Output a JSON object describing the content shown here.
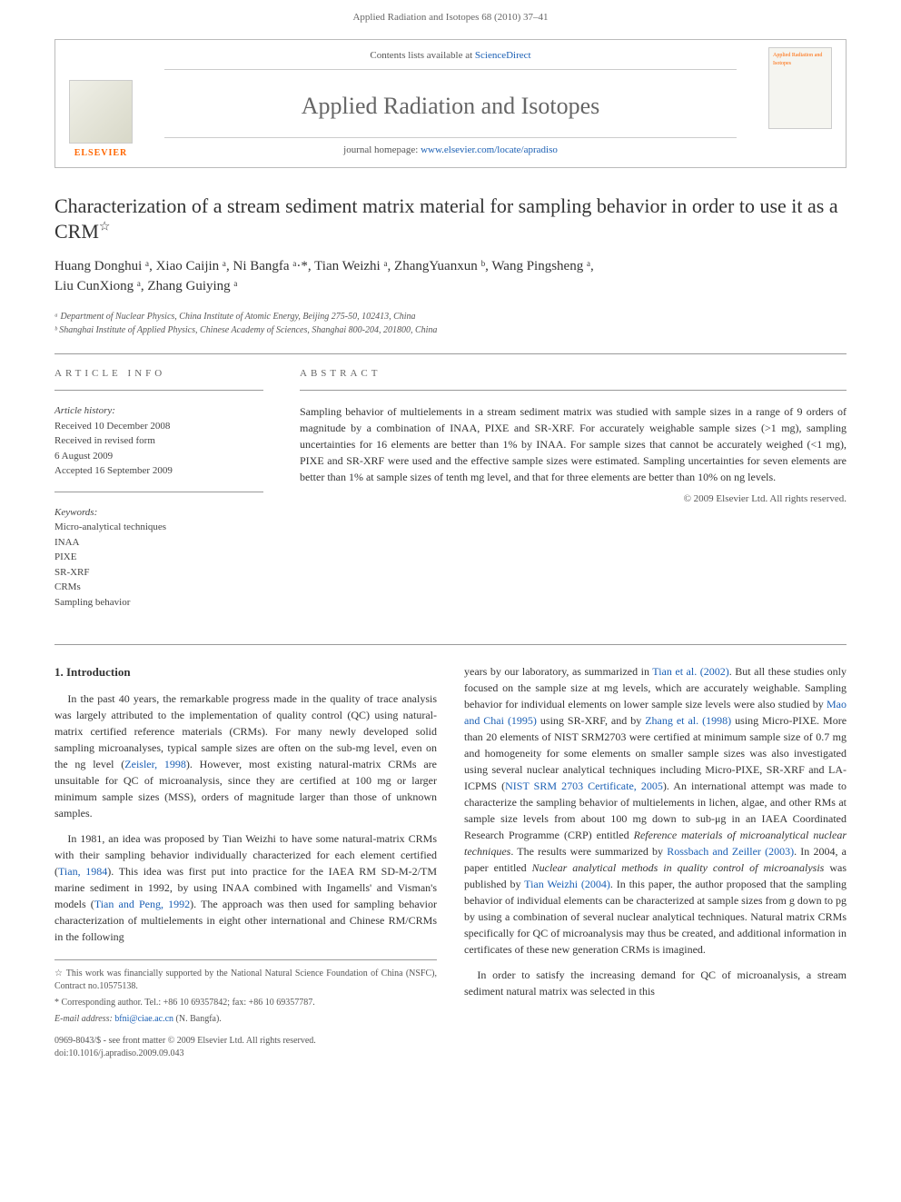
{
  "page_header": "Applied Radiation and Isotopes 68 (2010) 37–41",
  "journal_box": {
    "contents_prefix": "Contents lists available at ",
    "contents_link": "ScienceDirect",
    "journal_title": "Applied Radiation and Isotopes",
    "homepage_prefix": "journal homepage: ",
    "homepage_link": "www.elsevier.com/locate/apradiso",
    "elsevier_label": "ELSEVIER",
    "cover_text": "Applied Radiation and Isotopes"
  },
  "article": {
    "title": "Characterization of a stream sediment matrix material for sampling behavior in order to use it as a CRM",
    "star": "☆",
    "authors_line1": "Huang Donghui ᵃ, Xiao Caijin ᵃ, Ni Bangfa ᵃ·*, Tian Weizhi ᵃ, ZhangYuanxun ᵇ, Wang Pingsheng ᵃ,",
    "authors_line2": "Liu CunXiong ᵃ, Zhang Guiying ᵃ",
    "aff_a": "ᵃ Department of Nuclear Physics, China Institute of Atomic Energy, Beijing 275-50, 102413, China",
    "aff_b": "ᵇ Shanghai Institute of Applied Physics, Chinese Academy of Sciences, Shanghai 800-204, 201800, China"
  },
  "meta": {
    "article_info_label": "ARTICLE INFO",
    "history_label": "Article history:",
    "received": "Received 10 December 2008",
    "revised": "Received in revised form",
    "revised_date": "6 August 2009",
    "accepted": "Accepted 16 September 2009",
    "keywords_label": "Keywords:",
    "keywords": [
      "Micro-analytical techniques",
      "INAA",
      "PIXE",
      "SR-XRF",
      "CRMs",
      "Sampling behavior"
    ]
  },
  "abstract": {
    "label": "ABSTRACT",
    "text": "Sampling behavior of multielements in a stream sediment matrix was studied with sample sizes in a range of 9 orders of magnitude by a combination of INAA, PIXE and SR-XRF. For accurately weighable sample sizes (>1 mg), sampling uncertainties for 16 elements are better than 1% by INAA. For sample sizes that cannot be accurately weighed (<1 mg), PIXE and SR-XRF were used and the effective sample sizes were estimated. Sampling uncertainties for seven elements are better than 1% at sample sizes of tenth mg level, and that for three elements are better than 10% on ng levels.",
    "copyright": "© 2009 Elsevier Ltd. All rights reserved."
  },
  "section1": {
    "heading": "1. Introduction",
    "p1_a": "In the past 40 years, the remarkable progress made in the quality of trace analysis was largely attributed to the implementation of quality control (QC) using natural-matrix certified reference materials (CRMs). For many newly developed solid sampling microanalyses, typical sample sizes are often on the sub-mg level, even on the ng level (",
    "p1_link1": "Zeisler, 1998",
    "p1_b": "). However, most existing natural-matrix CRMs are unsuitable for QC of microanalysis, since they are certified at 100 mg or larger minimum sample sizes (MSS), orders of magnitude larger than those of unknown samples.",
    "p2_a": "In 1981, an idea was proposed by Tian Weizhi to have some natural-matrix CRMs with their sampling behavior individually characterized for each element certified (",
    "p2_link1": "Tian, 1984",
    "p2_b": "). This idea was first put into practice for the IAEA RM SD-M-2/TM marine sediment in 1992, by using INAA combined with Ingamells' and Visman's models (",
    "p2_link2": "Tian and Peng, 1992",
    "p2_c": "). The approach was then used for sampling behavior characterization of multielements in eight other international and Chinese RM/CRMs in the following",
    "col2_a": "years by our laboratory, as summarized in ",
    "col2_link1": "Tian et al. (2002)",
    "col2_b": ". But all these studies only focused on the sample size at mg levels, which are accurately weighable. Sampling behavior for individual elements on lower sample size levels were also studied by ",
    "col2_link2": "Mao and Chai (1995)",
    "col2_c": " using SR-XRF, and by ",
    "col2_link3": "Zhang et al. (1998)",
    "col2_d": " using Micro-PIXE. More than 20 elements of NIST SRM2703 were certified at minimum sample size of 0.7 mg and homogeneity for some elements on smaller sample sizes was also investigated using several nuclear analytical techniques including Micro-PIXE, SR-XRF and LA-ICPMS (",
    "col2_link4": "NIST SRM 2703 Certificate, 2005",
    "col2_e": "). An international attempt was made to characterize the sampling behavior of multielements in lichen, algae, and other RMs at sample size levels from about 100 mg down to sub-μg in an IAEA Coordinated Research Programme (CRP) entitled ",
    "col2_em1": "Reference materials of microanalytical nuclear techniques",
    "col2_f": ". The results were summarized by ",
    "col2_link5": "Rossbach and Zeiller (2003)",
    "col2_g": ". In 2004, a paper entitled ",
    "col2_em2": "Nuclear analytical methods in quality control of microanalysis",
    "col2_h": " was published by ",
    "col2_link6": "Tian Weizhi (2004)",
    "col2_i": ". In this paper, the author proposed that the sampling behavior of individual elements can be characterized at sample sizes from g down to pg by using a combination of several nuclear analytical techniques. Natural matrix CRMs specifically for QC of microanalysis may thus be created, and additional information in certificates of these new generation CRMs is imagined.",
    "col2_p2": "In order to satisfy the increasing demand for QC of microanalysis, a stream sediment natural matrix was selected in this"
  },
  "footnotes": {
    "star_note": "☆ This work was financially supported by the National Natural Science Foundation of China (NSFC), Contract no.10575138.",
    "corr_note": "* Corresponding author. Tel.: +86 10 69357842; fax: +86 10 69357787.",
    "email_label": "E-mail address: ",
    "email": "bfni@ciae.ac.cn",
    "email_suffix": " (N. Bangfa)."
  },
  "bottom": {
    "issn_line": "0969-8043/$ - see front matter © 2009 Elsevier Ltd. All rights reserved.",
    "doi_line": "doi:10.1016/j.apradiso.2009.09.043"
  },
  "colors": {
    "link": "#1a5fb4",
    "elsevier_orange": "#ff6600",
    "text": "#333333",
    "muted": "#666666",
    "border": "#bbbbbb"
  }
}
